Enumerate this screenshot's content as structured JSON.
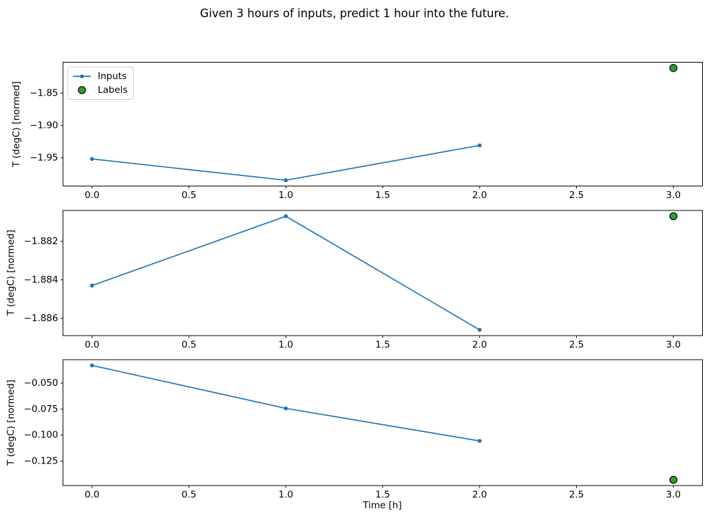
{
  "title": "Given 3 hours of inputs, predict 1 hour into the future.",
  "xlabel": "Time [h]",
  "legend": {
    "position": "upper-left",
    "items": [
      {
        "label": "Inputs",
        "marker": "line-with-dot",
        "color": "#1f77b4"
      },
      {
        "label": "Labels",
        "marker": "filled-circle",
        "color": "#2ca02c",
        "edge_color": "#000000"
      }
    ]
  },
  "colors": {
    "inputs_line": "#1f77b4",
    "labels_dot": "#2ca02c",
    "labels_dot_edge": "#000000",
    "axes": "#000000",
    "background": "#ffffff"
  },
  "chart_data": [
    {
      "type": "line",
      "ylabel": "T (degC) [normed]",
      "series": [
        {
          "name": "Inputs",
          "style": "line+marker",
          "x": [
            0,
            1,
            2
          ],
          "y": [
            -1.952,
            -1.985,
            -1.931
          ]
        },
        {
          "name": "Labels",
          "style": "scatter",
          "x": [
            3
          ],
          "y": [
            -1.811
          ]
        }
      ],
      "xlim": [
        -0.15,
        3.15
      ],
      "ylim": [
        -1.994,
        -1.802
      ],
      "xticks": {
        "values": [
          0,
          0.5,
          1,
          1.5,
          2,
          2.5,
          3
        ],
        "labels": [
          "0.0",
          "0.5",
          "1.0",
          "1.5",
          "2.0",
          "2.5",
          "3.0"
        ]
      },
      "yticks": {
        "values": [
          -1.85,
          -1.9,
          -1.95
        ],
        "labels": [
          "−1.85",
          "−1.90",
          "−1.95"
        ]
      },
      "grid": false
    },
    {
      "type": "line",
      "ylabel": "T (degC) [normed]",
      "series": [
        {
          "name": "Inputs",
          "style": "line+marker",
          "x": [
            0,
            1,
            2
          ],
          "y": [
            -1.8843,
            -1.8807,
            -1.8866
          ]
        },
        {
          "name": "Labels",
          "style": "scatter",
          "x": [
            3
          ],
          "y": [
            -1.8807
          ]
        }
      ],
      "xlim": [
        -0.15,
        3.15
      ],
      "ylim": [
        -1.8869,
        -1.8804
      ],
      "xticks": {
        "values": [
          0,
          0.5,
          1,
          1.5,
          2,
          2.5,
          3
        ],
        "labels": [
          "0.0",
          "0.5",
          "1.0",
          "1.5",
          "2.0",
          "2.5",
          "3.0"
        ]
      },
      "yticks": {
        "values": [
          -1.882,
          -1.884,
          -1.886
        ],
        "labels": [
          "−1.882",
          "−1.884",
          "−1.886"
        ]
      },
      "grid": false
    },
    {
      "type": "line",
      "ylabel": "T (degC) [normed]",
      "series": [
        {
          "name": "Inputs",
          "style": "line+marker",
          "x": [
            0,
            1,
            2
          ],
          "y": [
            -0.033,
            -0.0743,
            -0.1056
          ]
        },
        {
          "name": "Labels",
          "style": "scatter",
          "x": [
            3
          ],
          "y": [
            -0.143
          ]
        }
      ],
      "xlim": [
        -0.15,
        3.15
      ],
      "ylim": [
        -0.1485,
        -0.0275
      ],
      "xticks": {
        "values": [
          0,
          0.5,
          1,
          1.5,
          2,
          2.5,
          3
        ],
        "labels": [
          "0.0",
          "0.5",
          "1.0",
          "1.5",
          "2.0",
          "2.5",
          "3.0"
        ]
      },
      "yticks": {
        "values": [
          -0.05,
          -0.075,
          -0.1,
          -0.125
        ],
        "labels": [
          "−0.050",
          "−0.075",
          "−0.100",
          "−0.125"
        ]
      },
      "grid": false
    }
  ]
}
